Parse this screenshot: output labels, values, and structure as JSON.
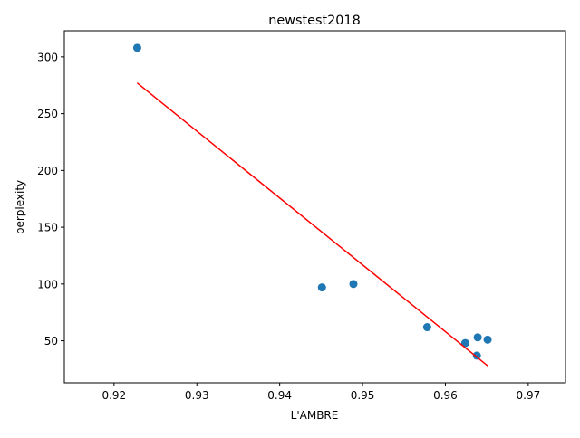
{
  "chart_data": {
    "type": "scatter",
    "title": "newstest2018",
    "xlabel": "L'AMBRE",
    "ylabel": "perplexity",
    "xlim": [
      0.914,
      0.9745
    ],
    "ylim": [
      13,
      323
    ],
    "xticks": [
      0.92,
      0.93,
      0.94,
      0.95,
      0.96,
      0.97
    ],
    "xtick_labels": [
      "0.92",
      "0.93",
      "0.94",
      "0.95",
      "0.96",
      "0.97"
    ],
    "yticks": [
      50,
      100,
      150,
      200,
      250,
      300
    ],
    "ytick_labels": [
      "50",
      "100",
      "150",
      "200",
      "250",
      "300"
    ],
    "grid": false,
    "series": [
      {
        "kind": "points",
        "color": "#1f77b4",
        "points": [
          {
            "x": 0.9228,
            "y": 308
          },
          {
            "x": 0.9451,
            "y": 97
          },
          {
            "x": 0.9489,
            "y": 100
          },
          {
            "x": 0.9578,
            "y": 62
          },
          {
            "x": 0.9624,
            "y": 48
          },
          {
            "x": 0.9638,
            "y": 37
          },
          {
            "x": 0.9639,
            "y": 53
          },
          {
            "x": 0.9651,
            "y": 51
          }
        ]
      },
      {
        "kind": "fit-line",
        "color": "#ff0000",
        "points": [
          {
            "x": 0.9228,
            "y": 277
          },
          {
            "x": 0.9651,
            "y": 28
          }
        ]
      }
    ]
  }
}
